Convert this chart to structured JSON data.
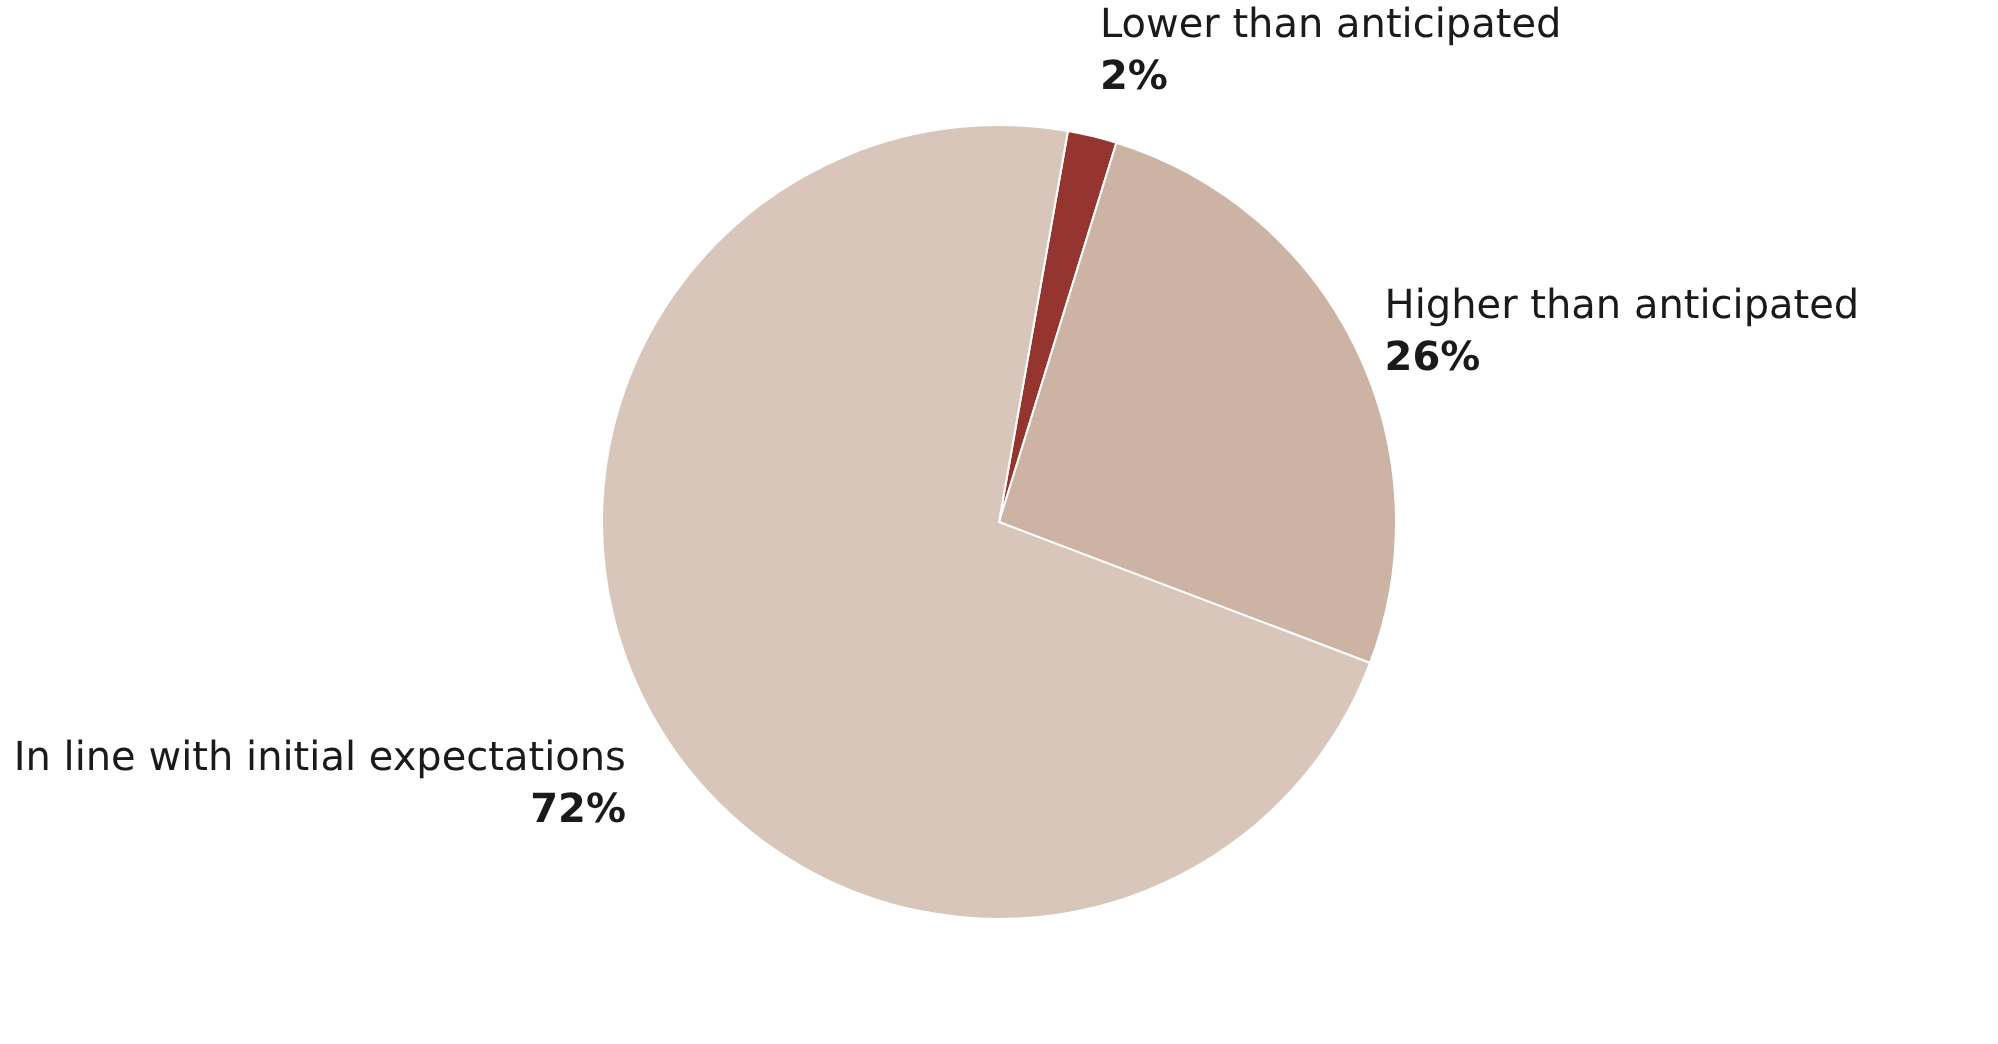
{
  "chart_data": {
    "type": "pie",
    "categories": [
      "Lower than anticipated",
      "Higher than anticipated",
      "In line with initial expectations"
    ],
    "values": [
      2,
      26,
      72
    ],
    "colors": [
      "#943530",
      "#cdb3a3",
      "#d9c6bb"
    ],
    "value_labels": [
      "2%",
      "26%",
      "72%"
    ]
  }
}
